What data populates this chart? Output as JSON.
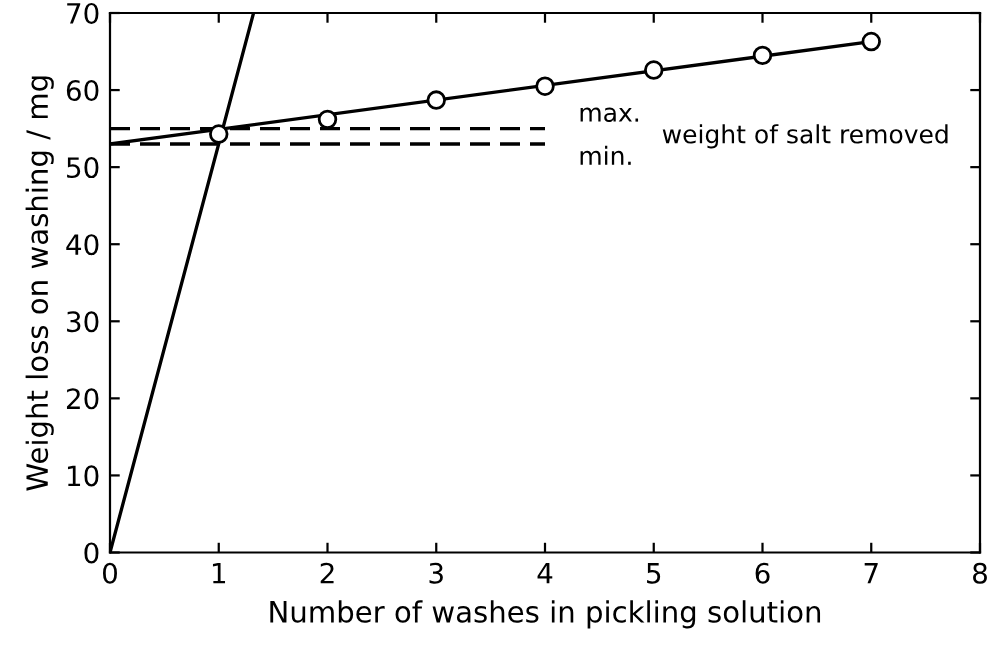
{
  "chart_data": {
    "type": "line",
    "xlabel": "Number of washes in pickling solution",
    "ylabel": "Weight loss on washing / mg",
    "xlim": [
      0,
      8
    ],
    "xticks": [
      0,
      1,
      2,
      3,
      4,
      5,
      6,
      7,
      8
    ],
    "ylim": [
      0,
      70
    ],
    "yticks": [
      0,
      10,
      20,
      30,
      40,
      50,
      60,
      70
    ],
    "grid": false,
    "legend": false,
    "series": [
      {
        "type": "scatter",
        "color": "#000000",
        "marker": "circle",
        "x": [
          1,
          2,
          3,
          4,
          5,
          6,
          7
        ],
        "values": [
          54.3,
          56.2,
          58.7,
          60.5,
          62.6,
          64.5,
          66.3
        ]
      },
      {
        "color": "#000000",
        "line_style": "solid",
        "x": [
          0,
          7
        ],
        "values": [
          53,
          66.3
        ]
      },
      {
        "color": "#000000",
        "line_style": "solid",
        "x": [
          0,
          1.32
        ],
        "values": [
          0,
          70
        ]
      },
      {
        "color": "#000000",
        "line_style": "dashed",
        "name": "max.",
        "x": [
          0,
          4
        ],
        "values": [
          55,
          55
        ]
      },
      {
        "color": "#000000",
        "line_style": "dashed",
        "name": "min.",
        "x": [
          0,
          4
        ],
        "values": [
          53,
          53
        ]
      }
    ],
    "annotations": [
      "weight of salt removed"
    ]
  }
}
